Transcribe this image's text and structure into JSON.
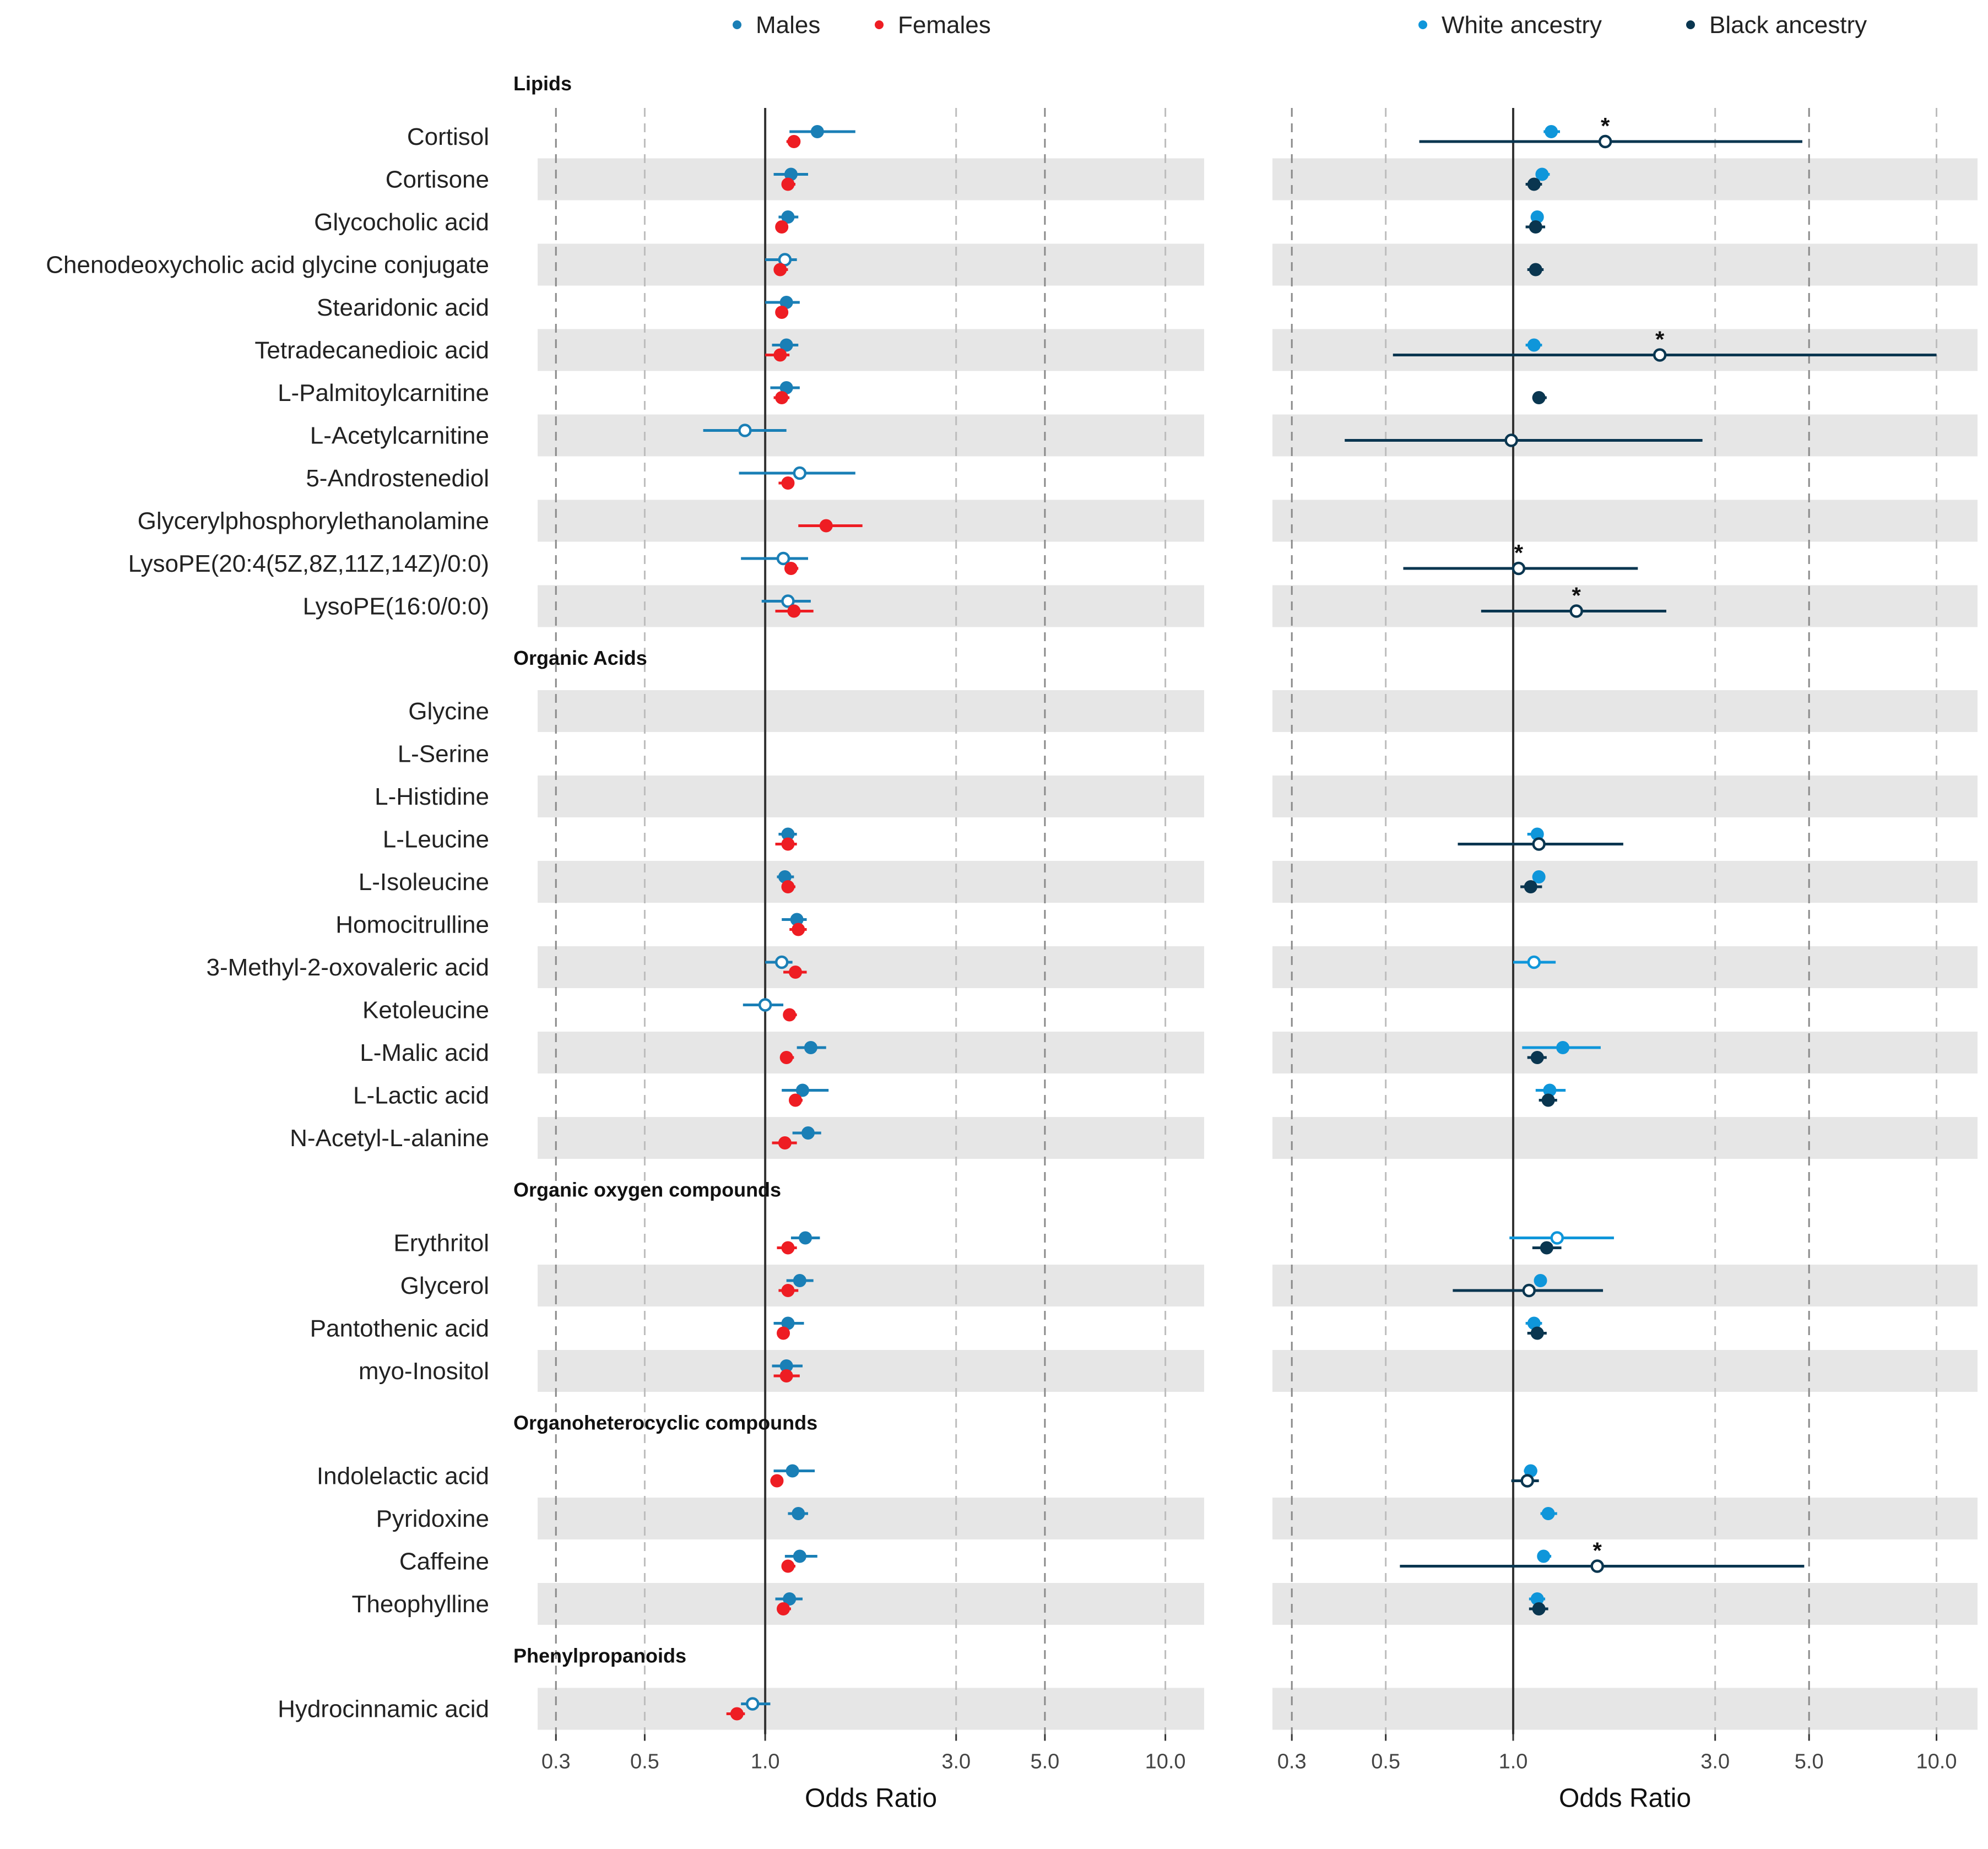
{
  "chart_data": {
    "type": "forest",
    "scale": "log",
    "xlim": [
      0.27,
      12.5
    ],
    "ticks": [
      {
        "value": 0.3,
        "label": "0.3"
      },
      {
        "value": 0.5,
        "label": "0.5"
      },
      {
        "value": 1.0,
        "label": "1.0"
      },
      {
        "value": 3.0,
        "label": "3.0"
      },
      {
        "value": 5.0,
        "label": "5.0"
      },
      {
        "value": 10.0,
        "label": "10.0"
      }
    ],
    "reference_line": 1.0,
    "colors": {
      "males": "#1a7fb6",
      "females": "#ee1d23",
      "white": "#0f96da",
      "black": "#0a3650",
      "band": "#e6e6e6",
      "grid": "#999999",
      "ref": "#333333"
    },
    "legends": {
      "sex": [
        {
          "key": "males",
          "label": "Males"
        },
        {
          "key": "females",
          "label": "Females"
        }
      ],
      "ancestry": [
        {
          "key": "white",
          "label": "White ancestry"
        },
        {
          "key": "black",
          "label": "Black ancestry"
        }
      ]
    },
    "panels": [
      {
        "id": "sex",
        "xlabel": "Odds Ratio",
        "series": [
          "males",
          "females"
        ]
      },
      {
        "id": "ancestry",
        "xlabel": "Odds Ratio",
        "series": [
          "white",
          "black"
        ]
      }
    ],
    "groups": [
      {
        "name": "Lipids",
        "items": [
          {
            "label": "Cortisol",
            "males": {
              "or": 1.35,
              "lo": 1.15,
              "hi": 1.68,
              "filled": true
            },
            "females": {
              "or": 1.18,
              "lo": 1.13,
              "hi": 1.22,
              "filled": true
            },
            "white": {
              "or": 1.23,
              "lo": 1.18,
              "hi": 1.29,
              "filled": true
            },
            "black": {
              "or": 1.65,
              "lo": 0.6,
              "hi": 4.82,
              "filled": false,
              "star": true
            }
          },
          {
            "label": "Cortisone",
            "males": {
              "or": 1.16,
              "lo": 1.05,
              "hi": 1.28,
              "filled": true
            },
            "females": {
              "or": 1.14,
              "lo": 1.1,
              "hi": 1.19,
              "filled": true
            },
            "white": {
              "or": 1.17,
              "lo": 1.13,
              "hi": 1.22,
              "filled": true
            },
            "black": {
              "or": 1.12,
              "lo": 1.07,
              "hi": 1.17,
              "filled": true
            }
          },
          {
            "label": "Glycocholic acid",
            "males": {
              "or": 1.14,
              "lo": 1.08,
              "hi": 1.21,
              "filled": true
            },
            "females": {
              "or": 1.1,
              "lo": 1.06,
              "hi": 1.14,
              "filled": true
            },
            "white": {
              "or": 1.14,
              "lo": 1.1,
              "hi": 1.18,
              "filled": true
            },
            "black": {
              "or": 1.13,
              "lo": 1.07,
              "hi": 1.19,
              "filled": true
            }
          },
          {
            "label": "Chenodeoxycholic acid glycine conjugate",
            "males": {
              "or": 1.12,
              "lo": 1.0,
              "hi": 1.2,
              "filled": false
            },
            "females": {
              "or": 1.09,
              "lo": 1.05,
              "hi": 1.14,
              "filled": true
            },
            "black": {
              "or": 1.13,
              "lo": 1.08,
              "hi": 1.18,
              "filled": true
            }
          },
          {
            "label": "Stearidonic acid",
            "males": {
              "or": 1.13,
              "lo": 1.0,
              "hi": 1.22,
              "filled": true
            },
            "females": {
              "or": 1.1,
              "lo": 1.06,
              "hi": 1.14,
              "filled": true
            }
          },
          {
            "label": "Tetradecanedioic acid",
            "males": {
              "or": 1.13,
              "lo": 1.04,
              "hi": 1.21,
              "filled": true
            },
            "females": {
              "or": 1.09,
              "lo": 1.0,
              "hi": 1.15,
              "filled": true
            },
            "white": {
              "or": 1.12,
              "lo": 1.07,
              "hi": 1.17,
              "filled": true
            },
            "black": {
              "or": 2.22,
              "lo": 0.52,
              "hi": 10.0,
              "filled": false,
              "star": true
            }
          },
          {
            "label": "L-Palmitoylcarnitine",
            "males": {
              "or": 1.13,
              "lo": 1.03,
              "hi": 1.22,
              "filled": true
            },
            "females": {
              "or": 1.1,
              "lo": 1.05,
              "hi": 1.15,
              "filled": true
            },
            "black": {
              "or": 1.15,
              "lo": 1.11,
              "hi": 1.2,
              "filled": true
            }
          },
          {
            "label": "L-Acetylcarnitine",
            "males": {
              "or": 0.89,
              "lo": 0.7,
              "hi": 1.13,
              "filled": false
            },
            "black": {
              "or": 0.99,
              "lo": 0.4,
              "hi": 2.8,
              "filled": false
            }
          },
          {
            "label": "5-Androstenediol",
            "males": {
              "or": 1.22,
              "lo": 0.86,
              "hi": 1.68,
              "filled": false
            },
            "females": {
              "or": 1.14,
              "lo": 1.08,
              "hi": 1.18,
              "filled": true
            }
          },
          {
            "label": "Glycerylphosphorylethanolamine",
            "females": {
              "or": 1.42,
              "lo": 1.21,
              "hi": 1.75,
              "filled": true
            }
          },
          {
            "label": "LysoPE(20:4(5Z,8Z,11Z,14Z)/0:0)",
            "males": {
              "or": 1.11,
              "lo": 0.87,
              "hi": 1.28,
              "filled": false
            },
            "females": {
              "or": 1.16,
              "lo": 1.12,
              "hi": 1.21,
              "filled": true
            },
            "black": {
              "or": 1.03,
              "lo": 0.55,
              "hi": 1.97,
              "filled": false,
              "star": true
            }
          },
          {
            "label": "LysoPE(16:0/0:0)",
            "males": {
              "or": 1.14,
              "lo": 0.98,
              "hi": 1.3,
              "filled": false
            },
            "females": {
              "or": 1.18,
              "lo": 1.06,
              "hi": 1.32,
              "filled": true
            },
            "black": {
              "or": 1.41,
              "lo": 0.84,
              "hi": 2.3,
              "filled": false,
              "star": true
            }
          }
        ]
      },
      {
        "name": "Organic Acids",
        "items": [
          {
            "label": "Glycine"
          },
          {
            "label": "L-Serine"
          },
          {
            "label": "L-Histidine"
          },
          {
            "label": "L-Leucine",
            "males": {
              "or": 1.14,
              "lo": 1.08,
              "hi": 1.2,
              "filled": true
            },
            "females": {
              "or": 1.14,
              "lo": 1.06,
              "hi": 1.2,
              "filled": true
            },
            "white": {
              "or": 1.14,
              "lo": 1.08,
              "hi": 1.18,
              "filled": true
            },
            "black": {
              "or": 1.15,
              "lo": 0.74,
              "hi": 1.82,
              "filled": false
            }
          },
          {
            "label": "L-Isoleucine",
            "males": {
              "or": 1.12,
              "lo": 1.07,
              "hi": 1.18,
              "filled": true
            },
            "females": {
              "or": 1.14,
              "lo": 1.1,
              "hi": 1.19,
              "filled": true
            },
            "white": {
              "or": 1.15,
              "lo": 1.11,
              "hi": 1.19,
              "filled": true
            },
            "black": {
              "or": 1.1,
              "lo": 1.04,
              "hi": 1.17,
              "filled": true
            }
          },
          {
            "label": "Homocitrulline",
            "males": {
              "or": 1.2,
              "lo": 1.1,
              "hi": 1.27,
              "filled": true
            },
            "females": {
              "or": 1.21,
              "lo": 1.15,
              "hi": 1.27,
              "filled": true
            }
          },
          {
            "label": "3-Methyl-2-oxovaleric acid",
            "males": {
              "or": 1.1,
              "lo": 1.0,
              "hi": 1.17,
              "filled": false
            },
            "females": {
              "or": 1.19,
              "lo": 1.11,
              "hi": 1.27,
              "filled": true
            },
            "white": {
              "or": 1.12,
              "lo": 1.0,
              "hi": 1.26,
              "filled": false
            }
          },
          {
            "label": "Ketoleucine",
            "males": {
              "or": 1.0,
              "lo": 0.88,
              "hi": 1.11,
              "filled": false
            },
            "females": {
              "or": 1.15,
              "lo": 1.11,
              "hi": 1.2,
              "filled": true
            }
          },
          {
            "label": "L-Malic acid",
            "males": {
              "or": 1.3,
              "lo": 1.2,
              "hi": 1.42,
              "filled": true
            },
            "females": {
              "or": 1.13,
              "lo": 1.09,
              "hi": 1.18,
              "filled": true
            },
            "white": {
              "or": 1.31,
              "lo": 1.05,
              "hi": 1.61,
              "filled": true
            },
            "black": {
              "or": 1.14,
              "lo": 1.08,
              "hi": 1.2,
              "filled": true
            }
          },
          {
            "label": "L-Lactic acid",
            "males": {
              "or": 1.24,
              "lo": 1.1,
              "hi": 1.44,
              "filled": true
            },
            "females": {
              "or": 1.19,
              "lo": 1.15,
              "hi": 1.24,
              "filled": true
            },
            "white": {
              "or": 1.22,
              "lo": 1.13,
              "hi": 1.33,
              "filled": true
            },
            "black": {
              "or": 1.21,
              "lo": 1.15,
              "hi": 1.27,
              "filled": true
            }
          },
          {
            "label": "N-Acetyl-L-alanine",
            "males": {
              "or": 1.28,
              "lo": 1.17,
              "hi": 1.38,
              "filled": true
            },
            "females": {
              "or": 1.12,
              "lo": 1.04,
              "hi": 1.2,
              "filled": true
            }
          }
        ]
      },
      {
        "name": "Organic oxygen compounds",
        "items": [
          {
            "label": "Erythritol",
            "males": {
              "or": 1.26,
              "lo": 1.16,
              "hi": 1.37,
              "filled": true
            },
            "females": {
              "or": 1.14,
              "lo": 1.07,
              "hi": 1.2,
              "filled": true
            },
            "white": {
              "or": 1.27,
              "lo": 0.98,
              "hi": 1.73,
              "filled": false
            },
            "black": {
              "or": 1.2,
              "lo": 1.11,
              "hi": 1.3,
              "filled": true
            }
          },
          {
            "label": "Glycerol",
            "males": {
              "or": 1.22,
              "lo": 1.13,
              "hi": 1.32,
              "filled": true
            },
            "females": {
              "or": 1.14,
              "lo": 1.08,
              "hi": 1.21,
              "filled": true
            },
            "white": {
              "or": 1.16,
              "lo": 1.12,
              "hi": 1.2,
              "filled": true
            },
            "black": {
              "or": 1.09,
              "lo": 0.72,
              "hi": 1.63,
              "filled": false
            }
          },
          {
            "label": "Pantothenic acid",
            "males": {
              "or": 1.14,
              "lo": 1.05,
              "hi": 1.25,
              "filled": true
            },
            "females": {
              "or": 1.11,
              "lo": 1.07,
              "hi": 1.15,
              "filled": true
            },
            "white": {
              "or": 1.12,
              "lo": 1.07,
              "hi": 1.17,
              "filled": true
            },
            "black": {
              "or": 1.14,
              "lo": 1.08,
              "hi": 1.2,
              "filled": true
            }
          },
          {
            "label": "myo-Inositol",
            "males": {
              "or": 1.13,
              "lo": 1.04,
              "hi": 1.24,
              "filled": true
            },
            "females": {
              "or": 1.13,
              "lo": 1.05,
              "hi": 1.22,
              "filled": true
            }
          }
        ]
      },
      {
        "name": "Organoheterocyclic compounds",
        "items": [
          {
            "label": "Indolelactic acid",
            "males": {
              "or": 1.17,
              "lo": 1.05,
              "hi": 1.33,
              "filled": true
            },
            "females": {
              "or": 1.07,
              "lo": 1.03,
              "hi": 1.11,
              "filled": true
            },
            "white": {
              "or": 1.1,
              "lo": 1.06,
              "hi": 1.14,
              "filled": true
            },
            "black": {
              "or": 1.08,
              "lo": 0.99,
              "hi": 1.15,
              "filled": false
            }
          },
          {
            "label": "Pyridoxine",
            "males": {
              "or": 1.21,
              "lo": 1.14,
              "hi": 1.28,
              "filled": true
            },
            "white": {
              "or": 1.21,
              "lo": 1.16,
              "hi": 1.27,
              "filled": true
            }
          },
          {
            "label": "Caffeine",
            "males": {
              "or": 1.22,
              "lo": 1.12,
              "hi": 1.35,
              "filled": true
            },
            "females": {
              "or": 1.14,
              "lo": 1.1,
              "hi": 1.19,
              "filled": true
            },
            "white": {
              "or": 1.18,
              "lo": 1.14,
              "hi": 1.23,
              "filled": true
            },
            "black": {
              "or": 1.58,
              "lo": 0.54,
              "hi": 4.87,
              "filled": false,
              "star": true
            }
          },
          {
            "label": "Theophylline",
            "males": {
              "or": 1.15,
              "lo": 1.06,
              "hi": 1.24,
              "filled": true
            },
            "females": {
              "or": 1.11,
              "lo": 1.07,
              "hi": 1.16,
              "filled": true
            },
            "white": {
              "or": 1.14,
              "lo": 1.09,
              "hi": 1.19,
              "filled": true
            },
            "black": {
              "or": 1.15,
              "lo": 1.09,
              "hi": 1.21,
              "filled": true
            }
          }
        ]
      },
      {
        "name": "Phenylpropanoids",
        "items": [
          {
            "label": "Hydrocinnamic acid",
            "males": {
              "or": 0.93,
              "lo": 0.87,
              "hi": 1.03,
              "filled": false
            },
            "females": {
              "or": 0.85,
              "lo": 0.8,
              "hi": 0.89,
              "filled": true
            }
          }
        ]
      }
    ]
  }
}
